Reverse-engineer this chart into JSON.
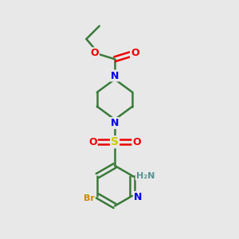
{
  "bg_color": "#e8e8e8",
  "bond_color": "#3a7a3a",
  "bond_width": 1.8,
  "atom_colors": {
    "N": "#0000ee",
    "O": "#ee0000",
    "S": "#cccc00",
    "Br": "#cc8800",
    "NH2_color": "#5a9090",
    "C": "#3a7a3a"
  },
  "figsize": [
    3.0,
    3.0
  ],
  "dpi": 100
}
